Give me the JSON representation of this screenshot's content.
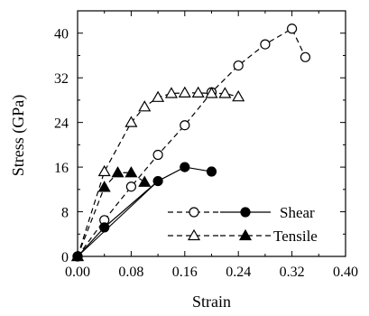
{
  "chart_data": {
    "type": "line",
    "title": "",
    "xlabel": "Strain",
    "ylabel": "Stress (GPa)",
    "xlim": [
      0,
      0.4
    ],
    "ylim": [
      0,
      44
    ],
    "x_ticks": [
      "0.00",
      "0.08",
      "0.16",
      "0.24",
      "0.32",
      "0.40"
    ],
    "x_tick_values": [
      0,
      0.08,
      0.16,
      0.24,
      0.32,
      0.4
    ],
    "y_ticks": [
      "0",
      "8",
      "16",
      "24",
      "32",
      "40"
    ],
    "y_tick_values": [
      0,
      8,
      16,
      24,
      32,
      40
    ],
    "grid": false,
    "legend": {
      "placement": "bottom-right",
      "entries": [
        {
          "label": "Shear",
          "markers": [
            "circle-open",
            "circle-filled"
          ]
        },
        {
          "label": "Tensile",
          "markers": [
            "triangle-open",
            "triangle-filled"
          ]
        }
      ]
    },
    "series": [
      {
        "legend": "Shear",
        "marker": "circle-open",
        "line": "dashed",
        "x": [
          0,
          0.04,
          0.08,
          0.12,
          0.16,
          0.2,
          0.24,
          0.28,
          0.32,
          0.34
        ],
        "y": [
          0,
          6.5,
          12.5,
          18.2,
          23.5,
          29.4,
          34.2,
          38.0,
          40.8,
          35.7
        ]
      },
      {
        "legend": "Shear",
        "marker": "circle-filled",
        "line": "solid",
        "x": [
          0,
          0.04,
          0.12,
          0.16,
          0.2
        ],
        "y": [
          0,
          5.2,
          13.5,
          16.0,
          15.2
        ]
      },
      {
        "legend": "Tensile",
        "marker": "triangle-open",
        "line": "dashed",
        "x": [
          0,
          0.04,
          0.08,
          0.1,
          0.12,
          0.14,
          0.16,
          0.18,
          0.2,
          0.22,
          0.24
        ],
        "y": [
          0,
          15.2,
          24.0,
          26.8,
          28.5,
          29.2,
          29.3,
          29.3,
          29.2,
          29.2,
          28.6
        ]
      },
      {
        "legend": "Tensile",
        "marker": "triangle-filled",
        "line": "dashed",
        "x": [
          0,
          0.04,
          0.06,
          0.08,
          0.1
        ],
        "y": [
          0,
          12.4,
          15.0,
          15.0,
          13.3
        ]
      }
    ],
    "extra_lines": [
      {
        "style": "solid",
        "x": [
          0,
          0.12
        ],
        "y": [
          0,
          13.5
        ]
      }
    ]
  }
}
